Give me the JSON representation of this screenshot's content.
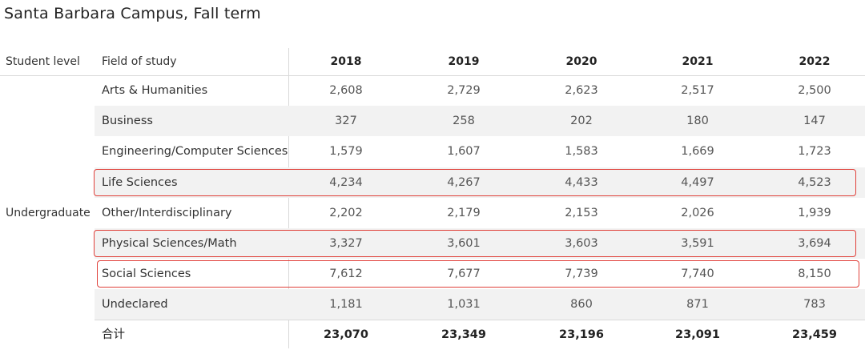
{
  "chart_data": {
    "type": "table",
    "title": "Santa Barbara Campus, Fall term",
    "columns": {
      "level": "Student level",
      "field": "Field of study",
      "years": [
        "2018",
        "2019",
        "2020",
        "2021",
        "2022"
      ]
    },
    "group": "Undergraduate",
    "rows": [
      {
        "field": "Arts & Humanities",
        "values": [
          "2,608",
          "2,729",
          "2,623",
          "2,517",
          "2,500"
        ],
        "highlighted": false
      },
      {
        "field": "Business",
        "values": [
          "327",
          "258",
          "202",
          "180",
          "147"
        ],
        "highlighted": false
      },
      {
        "field": "Engineering/Computer Sciences",
        "values": [
          "1,579",
          "1,607",
          "1,583",
          "1,669",
          "1,723"
        ],
        "highlighted": false
      },
      {
        "field": "Life Sciences",
        "values": [
          "4,234",
          "4,267",
          "4,433",
          "4,497",
          "4,523"
        ],
        "highlighted": true
      },
      {
        "field": "Other/Interdisciplinary",
        "values": [
          "2,202",
          "2,179",
          "2,153",
          "2,026",
          "1,939"
        ],
        "highlighted": false
      },
      {
        "field": "Physical Sciences/Math",
        "values": [
          "3,327",
          "3,601",
          "3,603",
          "3,591",
          "3,694"
        ],
        "highlighted": true
      },
      {
        "field": "Social Sciences",
        "values": [
          "7,612",
          "7,677",
          "7,739",
          "7,740",
          "8,150"
        ],
        "highlighted": true
      },
      {
        "field": "Undeclared",
        "values": [
          "1,181",
          "1,031",
          "860",
          "871",
          "783"
        ],
        "highlighted": false
      }
    ],
    "total": {
      "field": "合计",
      "values": [
        "23,070",
        "23,349",
        "23,196",
        "23,091",
        "23,459"
      ]
    }
  },
  "colors": {
    "highlight_border": "#e0403a",
    "row_shade": "#f2f2f2"
  }
}
